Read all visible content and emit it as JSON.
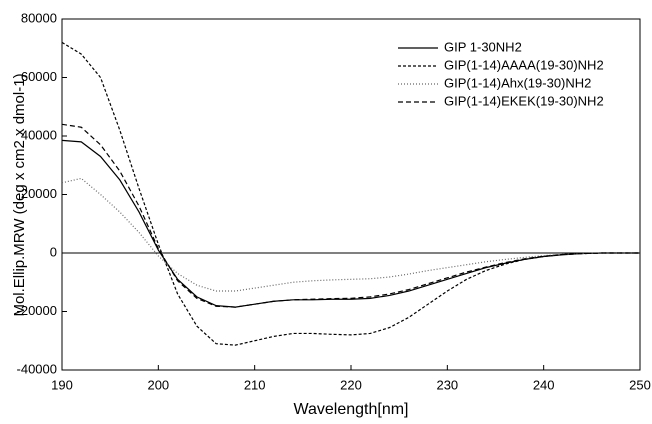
{
  "chart_data": {
    "type": "line",
    "x_label": "Wavelength[nm]",
    "y_label": "Mol.Ellip.MRW (deg x cm2 x dmol-1)",
    "x": [
      190,
      192,
      194,
      196,
      198,
      200,
      202,
      204,
      206,
      208,
      210,
      212,
      214,
      216,
      218,
      220,
      222,
      224,
      226,
      228,
      230,
      232,
      234,
      236,
      238,
      240,
      242,
      244,
      246,
      248,
      250
    ],
    "series": [
      {
        "name": "GIP 1-30NH2",
        "color": "#000000",
        "dash": "none",
        "values": [
          38500,
          38000,
          33000,
          25000,
          14000,
          1000,
          -9000,
          -15000,
          -18000,
          -18500,
          -17500,
          -16500,
          -16000,
          -16000,
          -15800,
          -15800,
          -15500,
          -14500,
          -13000,
          -11000,
          -9000,
          -7000,
          -5000,
          -3500,
          -2200,
          -1200,
          -600,
          -200,
          0,
          0,
          0
        ]
      },
      {
        "name": "GIP(1-14)AAAA(19-30)NH2",
        "color": "#000000",
        "dash": "3 2",
        "values": [
          72000,
          68000,
          60000,
          42000,
          22000,
          3000,
          -14000,
          -25000,
          -31000,
          -31500,
          -30000,
          -28500,
          -27500,
          -27500,
          -27800,
          -28000,
          -27500,
          -25500,
          -22000,
          -17500,
          -13000,
          -9000,
          -6000,
          -3800,
          -2200,
          -1200,
          -500,
          -200,
          0,
          0,
          0
        ]
      },
      {
        "name": "GIP(1-14)Ahx(19-30)NH2",
        "color": "#666666",
        "dash": "1 2",
        "values": [
          24000,
          25500,
          20000,
          14000,
          7000,
          -1000,
          -7000,
          -11000,
          -13000,
          -13000,
          -12000,
          -11000,
          -10000,
          -9500,
          -9200,
          -9000,
          -8800,
          -8200,
          -7200,
          -6000,
          -5000,
          -4000,
          -3000,
          -2200,
          -1500,
          -900,
          -500,
          -200,
          0,
          0,
          0
        ]
      },
      {
        "name": "GIP(1-14)EKEK(19-30)NH2",
        "color": "#000000",
        "dash": "5 3",
        "values": [
          44000,
          43000,
          37000,
          28000,
          16000,
          1500,
          -9500,
          -15500,
          -18200,
          -18500,
          -17500,
          -16500,
          -16000,
          -15800,
          -15600,
          -15500,
          -15000,
          -14000,
          -12500,
          -10500,
          -8500,
          -6500,
          -4800,
          -3300,
          -2000,
          -1100,
          -500,
          -200,
          0,
          0,
          0
        ]
      }
    ],
    "xlim": [
      190,
      250
    ],
    "xticks": [
      190,
      200,
      210,
      220,
      230,
      240,
      250
    ],
    "ylim": [
      -40000,
      80000
    ],
    "yticks": [
      -40000,
      -20000,
      0,
      20000,
      40000,
      60000,
      80000
    ],
    "grid": false,
    "legend": "upper right"
  }
}
